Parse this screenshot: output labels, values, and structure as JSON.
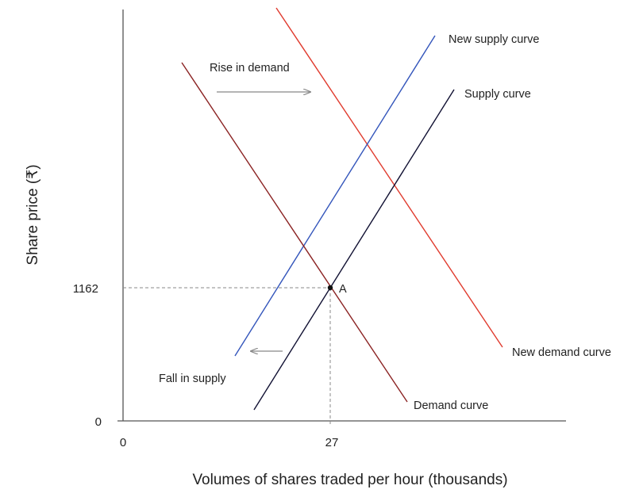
{
  "chart_data": {
    "type": "line",
    "xlabel": "Volumes of shares traded per hour (thousands)",
    "ylabel": "Share price (₹)",
    "x_ticks": [
      "0",
      "27"
    ],
    "y_ticks": [
      "0",
      "1162"
    ],
    "equilibrium": {
      "label": "A",
      "x": 27,
      "y": 1162
    },
    "series": [
      {
        "name": "Demand curve",
        "color": "#8b2323"
      },
      {
        "name": "Supply curve",
        "color": "#111133"
      },
      {
        "name": "New supply curve",
        "color": "#3355bb"
      },
      {
        "name": "New demand curve",
        "color": "#e03b2e"
      }
    ],
    "annotations": [
      {
        "text": "Rise in demand",
        "arrow": "right"
      },
      {
        "text": "Fall in supply",
        "arrow": "left"
      }
    ],
    "colors": {
      "axis": "#555555",
      "guide": "#888888",
      "arrow": "#888888"
    }
  }
}
